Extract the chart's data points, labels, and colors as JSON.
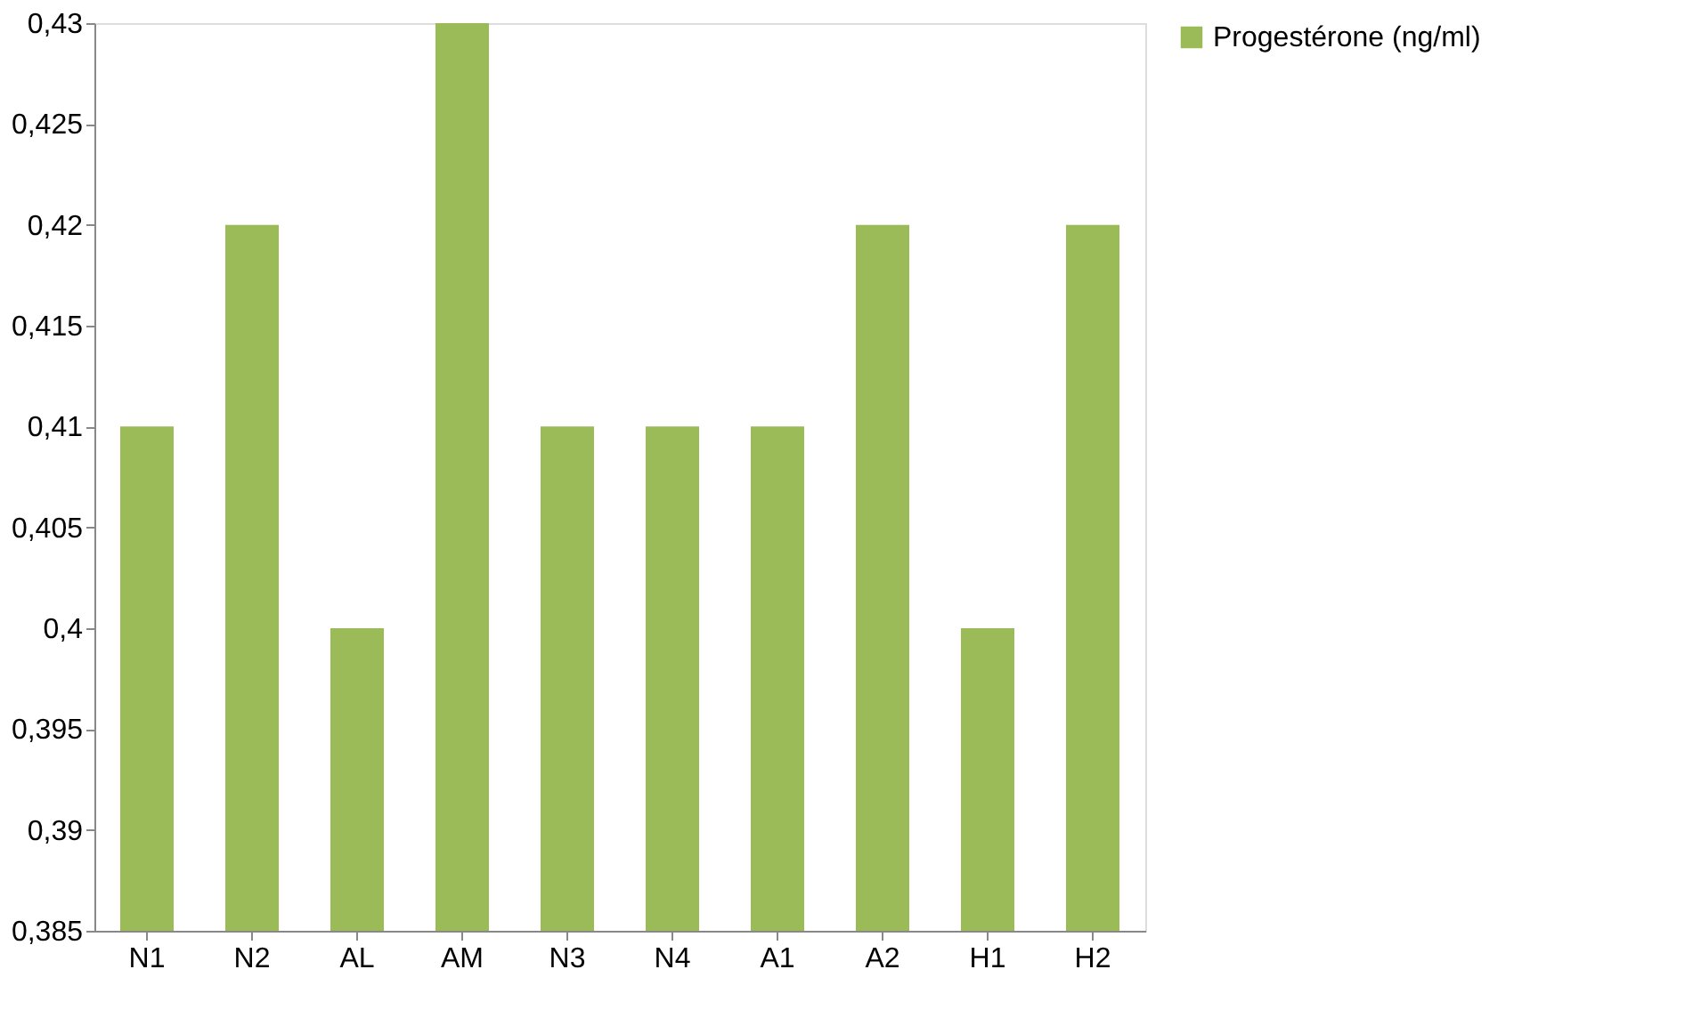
{
  "chart_data": {
    "type": "bar",
    "categories": [
      "N1",
      "N2",
      "AL",
      "AM",
      "N3",
      "N4",
      "A1",
      "A2",
      "H1",
      "H2"
    ],
    "series": [
      {
        "name": "Progestérone (ng/ml)",
        "color": "#9bbb59",
        "values": [
          0.41,
          0.42,
          0.4,
          0.43,
          0.41,
          0.41,
          0.41,
          0.42,
          0.4,
          0.42
        ]
      }
    ],
    "ylim": [
      0.385,
      0.43
    ],
    "yticks": [
      {
        "value": 0.385,
        "label": "0,385"
      },
      {
        "value": 0.39,
        "label": "0,39"
      },
      {
        "value": 0.395,
        "label": "0,395"
      },
      {
        "value": 0.4,
        "label": "0,4"
      },
      {
        "value": 0.405,
        "label": "0,405"
      },
      {
        "value": 0.41,
        "label": "0,41"
      },
      {
        "value": 0.415,
        "label": "0,415"
      },
      {
        "value": 0.42,
        "label": "0,42"
      },
      {
        "value": 0.425,
        "label": "0,425"
      },
      {
        "value": 0.43,
        "label": "0,43"
      }
    ],
    "grid": false,
    "legend": "right"
  }
}
